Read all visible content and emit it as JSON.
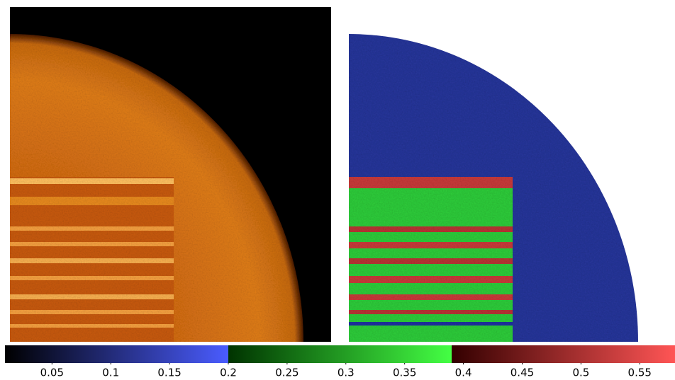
{
  "colorbar": {
    "lim": [
      0.01,
      0.58
    ],
    "ticks": [
      0.05,
      0.1,
      0.15,
      0.2,
      0.25,
      0.3,
      0.35,
      0.4,
      0.45,
      0.5,
      0.55
    ],
    "colormap": [
      [
        "#000000",
        "#4a5cff"
      ],
      [
        "#003300",
        "#44ff44"
      ],
      [
        "#330000",
        "#ff5555"
      ]
    ]
  }
}
